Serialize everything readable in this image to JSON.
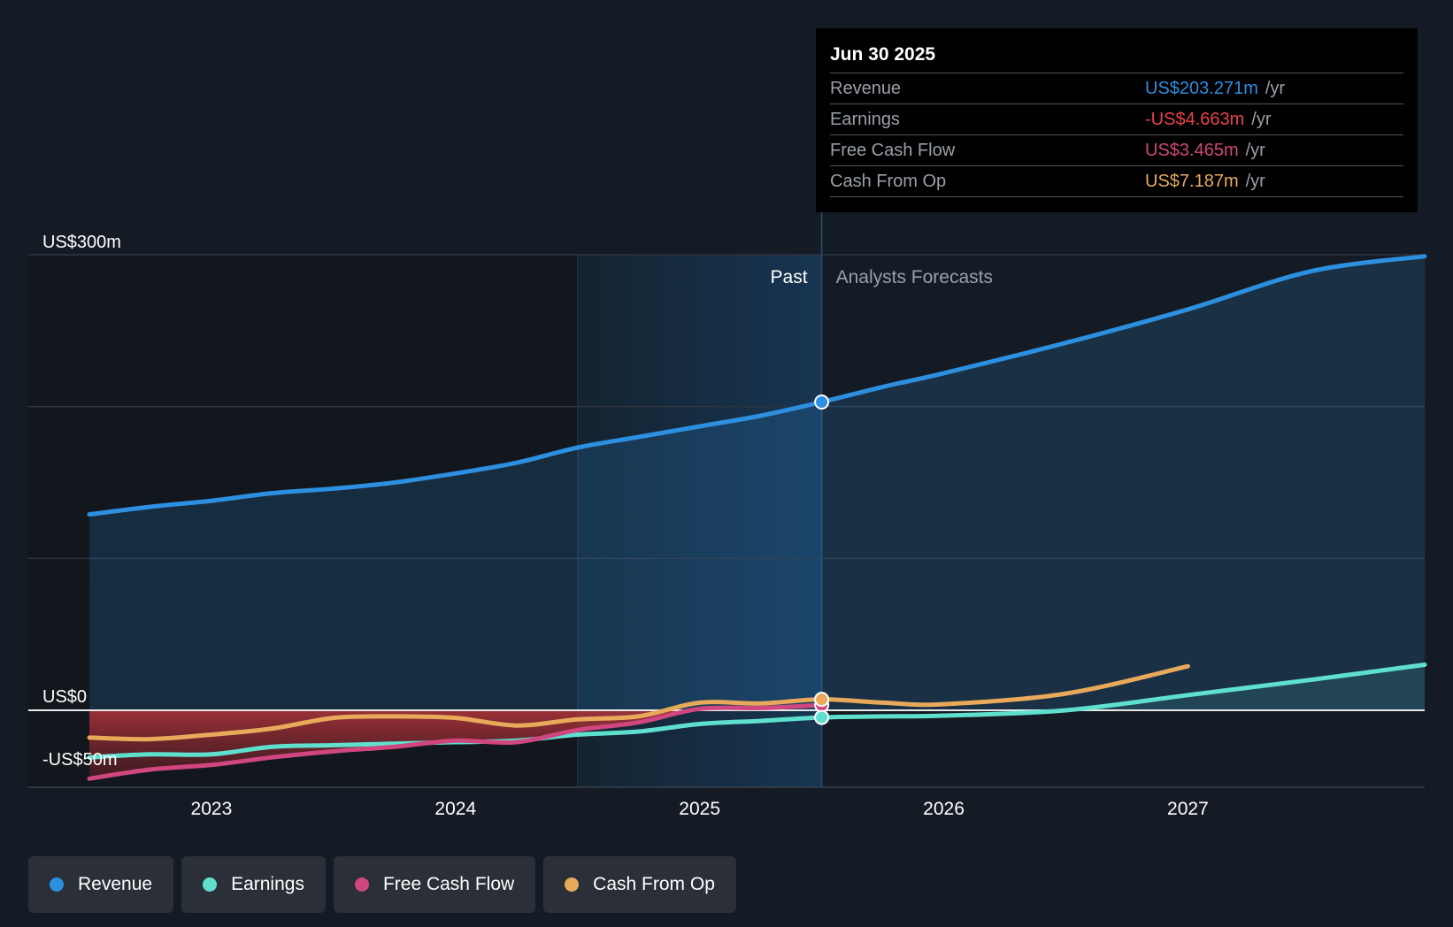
{
  "tooltip": {
    "date": "Jun 30 2025",
    "rows": [
      {
        "label": "Revenue",
        "value": "US$203.271m",
        "unit": "/yr",
        "color": "#2d8fe0"
      },
      {
        "label": "Earnings",
        "value": "-US$4.663m",
        "unit": "/yr",
        "color": "#e8414c"
      },
      {
        "label": "Free Cash Flow",
        "value": "US$3.465m",
        "unit": "/yr",
        "color": "#d0467e"
      },
      {
        "label": "Cash From Op",
        "value": "US$7.187m",
        "unit": "/yr",
        "color": "#e8a95a"
      }
    ]
  },
  "legend": [
    {
      "label": "Revenue",
      "color": "#2d8fe0"
    },
    {
      "label": "Earnings",
      "color": "#5fe0cf"
    },
    {
      "label": "Free Cash Flow",
      "color": "#d0467e"
    },
    {
      "label": "Cash From Op",
      "color": "#e8a95a"
    }
  ],
  "chart_data": {
    "type": "line",
    "title": "",
    "past_label": "Past",
    "forecast_label": "Analysts Forecasts",
    "y_tick_labels": [
      {
        "label": "US$300m",
        "value": 300
      },
      {
        "label": "US$0",
        "value": 0
      },
      {
        "label": "-US$50m",
        "value": -50
      }
    ],
    "x_tick_labels": [
      {
        "label": "2023",
        "value": 2023.0
      },
      {
        "label": "2024",
        "value": 2024.0
      },
      {
        "label": "2025",
        "value": 2025.0
      },
      {
        "label": "2026",
        "value": 2026.0
      },
      {
        "label": "2027",
        "value": 2027.0
      }
    ],
    "xlim": [
      2022.25,
      2027.97
    ],
    "ylim": [
      -50,
      300
    ],
    "gridlines": [
      100,
      200
    ],
    "past_shade_start": 2024.5,
    "divider_x": 2025.5,
    "series": [
      {
        "name": "Revenue",
        "color": "#2d8fe0",
        "fill": true,
        "x": [
          2022.5,
          2022.75,
          2023.0,
          2023.25,
          2023.5,
          2023.75,
          2024.0,
          2024.25,
          2024.5,
          2024.75,
          2025.0,
          2025.25,
          2025.5,
          2025.75,
          2026.0,
          2026.5,
          2027.0,
          2027.5,
          2027.97
        ],
        "values": [
          129,
          134,
          138,
          143,
          146,
          150,
          156,
          163,
          173,
          180,
          187,
          194,
          203,
          213,
          222,
          242,
          264,
          289,
          299
        ]
      },
      {
        "name": "Earnings",
        "color": "#5fe0cf",
        "fill": false,
        "x": [
          2022.5,
          2022.75,
          2023.0,
          2023.25,
          2023.5,
          2023.75,
          2024.0,
          2024.25,
          2024.5,
          2024.75,
          2025.0,
          2025.25,
          2025.5,
          2025.75,
          2026.0,
          2026.5,
          2027.0,
          2027.5,
          2027.97
        ],
        "values": [
          -31,
          -29,
          -29,
          -24,
          -23,
          -22,
          -21,
          -20,
          -16,
          -14,
          -9,
          -7,
          -4.7,
          -4,
          -3.5,
          0,
          10,
          20,
          30
        ]
      },
      {
        "name": "Free Cash Flow",
        "color": "#d0467e",
        "fill": false,
        "x": [
          2022.5,
          2022.75,
          2023.0,
          2023.25,
          2023.5,
          2023.75,
          2024.0,
          2024.25,
          2024.5,
          2024.75,
          2025.0,
          2025.25,
          2025.5
        ],
        "values": [
          -45,
          -39,
          -36,
          -31,
          -27,
          -24,
          -20,
          -21,
          -13,
          -8,
          1,
          1.5,
          3.5
        ]
      },
      {
        "name": "Cash From Op",
        "color": "#e8a95a",
        "fill": false,
        "x": [
          2022.5,
          2022.75,
          2023.0,
          2023.25,
          2023.5,
          2023.75,
          2024.0,
          2024.25,
          2024.5,
          2024.75,
          2025.0,
          2025.25,
          2025.5,
          2025.75,
          2026.0,
          2026.5,
          2027.0
        ],
        "values": [
          -18,
          -19,
          -16,
          -12,
          -5,
          -4,
          -5,
          -10,
          -6,
          -4,
          5,
          4.5,
          7.2,
          5,
          4,
          11,
          29
        ]
      }
    ]
  }
}
